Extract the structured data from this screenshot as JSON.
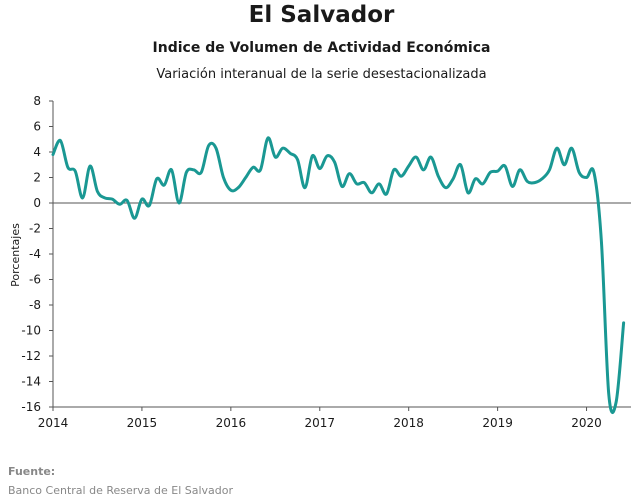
{
  "header": {
    "title": "El Salvador",
    "subtitle": "Indice de Volumen de  Actividad Económica",
    "subtitle2": "Variación interanual de la serie desestacionalizada"
  },
  "footer": {
    "source_label": "Fuente:",
    "source_text": "Banco Central de Reserva de El Salvador"
  },
  "chart_data": {
    "type": "line",
    "title": "El Salvador",
    "ylabel": "Porcentajes",
    "xlabel": "",
    "ylim": [
      -16,
      8
    ],
    "yticks": [
      8,
      6,
      4,
      2,
      0,
      -2,
      -4,
      -6,
      -8,
      -10,
      -12,
      -14,
      -16
    ],
    "xlim": [
      2014,
      2020.5
    ],
    "xticks": [
      2014,
      2015,
      2016,
      2017,
      2018,
      2019,
      2020
    ],
    "grid": false,
    "color": "#1a9893",
    "series": [
      {
        "name": "",
        "x": [
          2014.0,
          2014.083,
          2014.167,
          2014.25,
          2014.333,
          2014.417,
          2014.5,
          2014.583,
          2014.667,
          2014.75,
          2014.833,
          2014.917,
          2015.0,
          2015.083,
          2015.167,
          2015.25,
          2015.333,
          2015.417,
          2015.5,
          2015.583,
          2015.667,
          2015.75,
          2015.833,
          2015.917,
          2016.0,
          2016.083,
          2016.167,
          2016.25,
          2016.333,
          2016.417,
          2016.5,
          2016.583,
          2016.667,
          2016.75,
          2016.833,
          2016.917,
          2017.0,
          2017.083,
          2017.167,
          2017.25,
          2017.333,
          2017.417,
          2017.5,
          2017.583,
          2017.667,
          2017.75,
          2017.833,
          2017.917,
          2018.0,
          2018.083,
          2018.167,
          2018.25,
          2018.333,
          2018.417,
          2018.5,
          2018.583,
          2018.667,
          2018.75,
          2018.833,
          2018.917,
          2019.0,
          2019.083,
          2019.167,
          2019.25,
          2019.333,
          2019.417,
          2019.5,
          2019.583,
          2019.667,
          2019.75,
          2019.833,
          2019.917,
          2020.0,
          2020.083,
          2020.167,
          2020.25,
          2020.333,
          2020.417
        ],
        "y": [
          3.8,
          4.9,
          2.8,
          2.5,
          0.4,
          2.9,
          0.9,
          0.4,
          0.3,
          -0.1,
          0.2,
          -1.2,
          0.3,
          -0.2,
          1.9,
          1.4,
          2.6,
          0.0,
          2.4,
          2.6,
          2.4,
          4.5,
          4.3,
          2.0,
          1.0,
          1.2,
          2.0,
          2.8,
          2.6,
          5.1,
          3.6,
          4.3,
          3.9,
          3.4,
          1.2,
          3.7,
          2.7,
          3.7,
          3.2,
          1.3,
          2.3,
          1.5,
          1.6,
          0.8,
          1.5,
          0.7,
          2.6,
          2.1,
          2.9,
          3.6,
          2.6,
          3.6,
          2.1,
          1.2,
          1.9,
          3.0,
          0.8,
          1.9,
          1.5,
          2.4,
          2.5,
          2.9,
          1.3,
          2.6,
          1.7,
          1.6,
          1.9,
          2.6,
          4.3,
          3.0,
          4.3,
          2.4,
          2.0,
          2.4,
          -3.0,
          -15.0,
          -15.6,
          -9.4
        ]
      }
    ]
  }
}
